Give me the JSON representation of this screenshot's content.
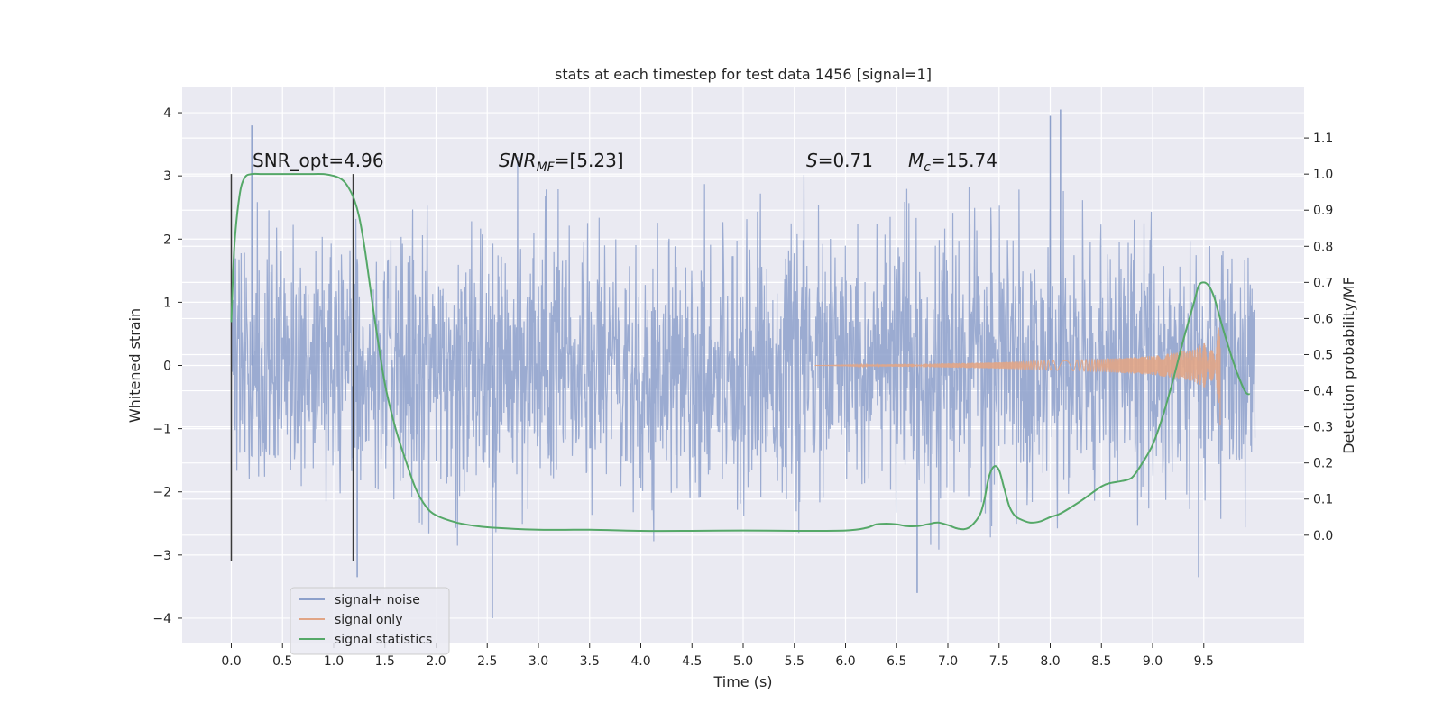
{
  "chart_data": {
    "type": "line",
    "title": "stats at each timestep for test data 1456 [signal=1]",
    "xlabel": "Time (s)",
    "ylabel": "Whitened strain",
    "ylabel_right": "Detection probability/MF",
    "xlim": [
      -0.48,
      10.48
    ],
    "ylim": [
      -4.4,
      4.4
    ],
    "ylim_right": [
      -0.3,
      1.24
    ],
    "x_ticks": [
      "0.0",
      "0.5",
      "1.0",
      "1.5",
      "2.0",
      "2.5",
      "3.0",
      "3.5",
      "4.0",
      "4.5",
      "5.0",
      "5.5",
      "6.0",
      "6.5",
      "7.0",
      "7.5",
      "8.0",
      "8.5",
      "9.0",
      "9.5"
    ],
    "y_ticks": [
      "4",
      "3",
      "2",
      "1",
      "0",
      "−1",
      "−2",
      "−3",
      "−4"
    ],
    "y_right_ticks": [
      "1.1",
      "1.0",
      "0.9",
      "0.8",
      "0.7",
      "0.6",
      "0.5",
      "0.4",
      "0.3",
      "0.2",
      "0.1",
      "0.0"
    ],
    "grid": true,
    "legend_position": "lower-left",
    "colors": {
      "background": "#eaeaf2",
      "grid": "#ffffff",
      "noise": "#8da0cb",
      "signal_only": "#e1a586",
      "statistics": "#55a868",
      "marker_lines": "#3a3a3a"
    },
    "annotations": {
      "snr_opt": "SNR_opt=4.96",
      "snr_mf_main": "SNR",
      "snr_mf_sub": "MF",
      "snr_mf_rest": "=[5.23]",
      "s_main": "S",
      "s_rest": "=0.71",
      "mc_main": "M",
      "mc_sub": "c",
      "mc_rest": "=15.74"
    },
    "marker_lines_x": [
      0.0,
      1.19
    ],
    "series": [
      {
        "name": "signal+ noise",
        "x_range": [
          0.0,
          10.0
        ],
        "amplitude_std": 1.0,
        "notable_peaks": [
          [
            0.2,
            3.8
          ],
          [
            8.0,
            3.95
          ],
          [
            8.1,
            4.05
          ],
          [
            2.55,
            -4.0
          ],
          [
            1.23,
            -3.35
          ],
          [
            6.7,
            -3.6
          ],
          [
            9.45,
            -3.35
          ]
        ]
      },
      {
        "name": "signal only",
        "envelope": [
          [
            5.7,
            0.0
          ],
          [
            6.5,
            0.02
          ],
          [
            7.5,
            0.05
          ],
          [
            8.5,
            0.1
          ],
          [
            9.0,
            0.15
          ],
          [
            9.4,
            0.25
          ],
          [
            9.6,
            0.45
          ],
          [
            9.66,
            0.65
          ]
        ],
        "cutoff": 9.66,
        "min_at_cutoff": -0.95
      },
      {
        "name": "signal statistics",
        "x": [
          0.0,
          0.03,
          0.08,
          0.13,
          0.2,
          0.3,
          0.45,
          0.6,
          0.75,
          0.9,
          1.0,
          1.05,
          1.1,
          1.15,
          1.2,
          1.25,
          1.3,
          1.35,
          1.4,
          1.5,
          1.6,
          1.7,
          1.8,
          1.9,
          2.0,
          2.2,
          2.4,
          2.6,
          3.0,
          3.5,
          4.0,
          4.5,
          5.0,
          5.5,
          6.0,
          6.2,
          6.3,
          6.4,
          6.5,
          6.6,
          6.7,
          6.8,
          6.9,
          7.0,
          7.1,
          7.2,
          7.3,
          7.35,
          7.4,
          7.45,
          7.5,
          7.55,
          7.6,
          7.65,
          7.7,
          7.8,
          7.9,
          8.0,
          8.1,
          8.3,
          8.5,
          8.6,
          8.7,
          8.8,
          8.9,
          9.0,
          9.1,
          9.2,
          9.3,
          9.4,
          9.45,
          9.5,
          9.55,
          9.6,
          9.65,
          9.7,
          9.8,
          9.9,
          9.95
        ],
        "values": [
          0.59,
          0.8,
          0.94,
          0.99,
          1.0,
          1.0,
          1.0,
          1.0,
          1.0,
          1.0,
          0.995,
          0.99,
          0.98,
          0.96,
          0.93,
          0.88,
          0.8,
          0.7,
          0.6,
          0.42,
          0.3,
          0.21,
          0.13,
          0.08,
          0.055,
          0.035,
          0.025,
          0.02,
          0.015,
          0.015,
          0.012,
          0.012,
          0.013,
          0.012,
          0.013,
          0.02,
          0.03,
          0.032,
          0.03,
          0.025,
          0.025,
          0.03,
          0.035,
          0.028,
          0.018,
          0.02,
          0.05,
          0.09,
          0.16,
          0.19,
          0.18,
          0.13,
          0.08,
          0.055,
          0.045,
          0.035,
          0.038,
          0.05,
          0.06,
          0.095,
          0.135,
          0.145,
          0.15,
          0.16,
          0.2,
          0.25,
          0.33,
          0.43,
          0.54,
          0.64,
          0.69,
          0.7,
          0.69,
          0.66,
          0.61,
          0.56,
          0.47,
          0.4,
          0.39
        ]
      }
    ]
  },
  "legend": {
    "items": [
      "signal+ noise",
      "signal only",
      "signal statistics"
    ]
  }
}
